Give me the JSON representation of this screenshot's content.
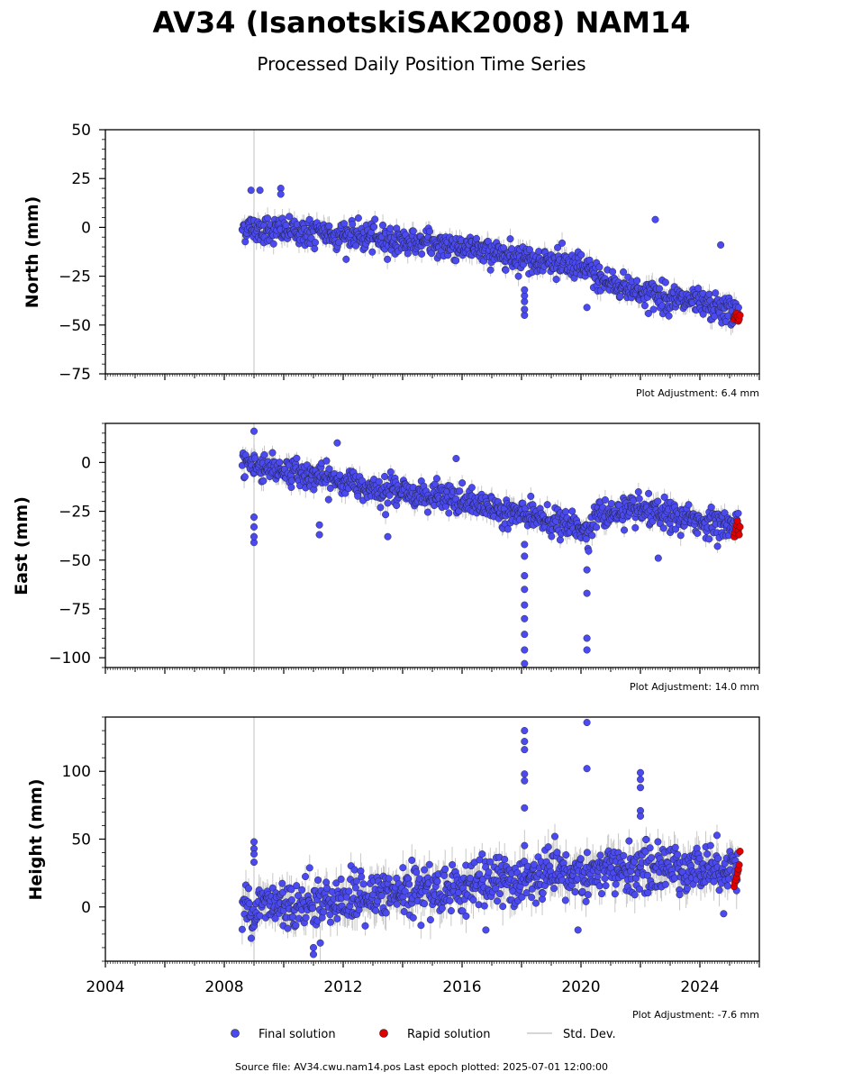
{
  "title": "AV34 (IsanotskiSAK2008) NAM14",
  "subtitle": "Processed Daily Position Time Series",
  "source_note": "Source file: AV34.cwu.nam14.pos  Last epoch plotted: 2025-07-01 12:00:00",
  "legend": {
    "final": "Final solution",
    "rapid": "Rapid solution",
    "std": "Std. Dev."
  },
  "colors": {
    "final": "#4a4af0",
    "rapid": "#e00000",
    "std": "#c8c8c8",
    "edge": "#1a1a1a"
  },
  "chart_data": [
    {
      "type": "scatter",
      "ylabel": "North (mm)",
      "adjustment": "Plot Adjustment: 6.4 mm",
      "xlim": [
        2004,
        2026
      ],
      "ylim": [
        -75,
        50
      ],
      "yticks": [
        -75,
        -50,
        -25,
        0,
        25,
        50
      ],
      "ytick_labels": [
        "−75",
        "−50",
        "−25",
        "0",
        "25",
        "50"
      ],
      "event_line_x": 2009.0,
      "final_trend": [
        [
          2008.6,
          0
        ],
        [
          2012,
          -4
        ],
        [
          2016,
          -10
        ],
        [
          2019,
          -18
        ],
        [
          2020.3,
          -22
        ],
        [
          2020.7,
          -27
        ],
        [
          2022,
          -33
        ],
        [
          2025.3,
          -44
        ]
      ],
      "final_scatter_sd": 3.5,
      "rapid_period": [
        2025.15,
        2025.35
      ],
      "rapid_values": [
        -47,
        -46,
        -45,
        -44,
        -46,
        -48,
        -47,
        -45
      ],
      "outliers": [
        [
          2018.1,
          -45
        ],
        [
          2018.1,
          -42
        ],
        [
          2018.1,
          -38
        ],
        [
          2018.1,
          -35
        ],
        [
          2018.1,
          -32
        ],
        [
          2009.9,
          20
        ],
        [
          2009.9,
          17
        ],
        [
          2020.2,
          -41
        ],
        [
          2022.5,
          4
        ],
        [
          2024.7,
          -9
        ],
        [
          2008.9,
          19
        ],
        [
          2009.2,
          19
        ]
      ]
    },
    {
      "type": "scatter",
      "ylabel": "East (mm)",
      "adjustment": "Plot Adjustment: 14.0 mm",
      "xlim": [
        2004,
        2026
      ],
      "ylim": [
        -105,
        20
      ],
      "yticks": [
        -100,
        -75,
        -50,
        -25,
        0
      ],
      "ytick_labels": [
        "−100",
        "−75",
        "−50",
        "−25",
        "0"
      ],
      "event_line_x": 2009.0,
      "final_trend": [
        [
          2008.6,
          0
        ],
        [
          2012,
          -10
        ],
        [
          2016,
          -20
        ],
        [
          2019,
          -30
        ],
        [
          2020.3,
          -35
        ],
        [
          2020.5,
          -27
        ],
        [
          2022,
          -25
        ],
        [
          2025.3,
          -33
        ]
      ],
      "final_scatter_sd": 3.5,
      "rapid_period": [
        2025.15,
        2025.35
      ],
      "rapid_values": [
        -38,
        -36,
        -34,
        -32,
        -30,
        -35,
        -37,
        -33
      ],
      "outliers": [
        [
          2018.1,
          -103
        ],
        [
          2018.1,
          -96
        ],
        [
          2018.1,
          -88
        ],
        [
          2018.1,
          -80
        ],
        [
          2018.1,
          -73
        ],
        [
          2018.1,
          -65
        ],
        [
          2018.1,
          -58
        ],
        [
          2018.1,
          -48
        ],
        [
          2018.1,
          -42
        ],
        [
          2020.2,
          -96
        ],
        [
          2020.2,
          -90
        ],
        [
          2020.2,
          -67
        ],
        [
          2020.2,
          -55
        ],
        [
          2009.0,
          -41
        ],
        [
          2009.0,
          -38
        ],
        [
          2009.0,
          -33
        ],
        [
          2009.0,
          -28
        ],
        [
          2009.0,
          16
        ],
        [
          2011.2,
          -37
        ],
        [
          2011.2,
          -32
        ],
        [
          2013.5,
          -38
        ],
        [
          2015.8,
          2
        ],
        [
          2011.8,
          10
        ],
        [
          2022.6,
          -49
        ]
      ]
    },
    {
      "type": "scatter",
      "ylabel": "Height (mm)",
      "adjustment": "Plot Adjustment: -7.6 mm",
      "xlim": [
        2004,
        2026
      ],
      "ylim": [
        -40,
        140
      ],
      "yticks": [
        0,
        50,
        100
      ],
      "ytick_labels": [
        "0",
        "50",
        "100"
      ],
      "xticks": [
        2004,
        2008,
        2012,
        2016,
        2020,
        2024
      ],
      "xtick_labels": [
        "2004",
        "2008",
        "2012",
        "2016",
        "2020",
        "2024"
      ],
      "event_line_x": 2009.0,
      "final_trend": [
        [
          2008.6,
          0
        ],
        [
          2012,
          5
        ],
        [
          2016,
          15
        ],
        [
          2019,
          22
        ],
        [
          2022,
          28
        ],
        [
          2025.3,
          30
        ]
      ],
      "final_scatter_sd": 9,
      "rapid_period": [
        2025.15,
        2025.35
      ],
      "rapid_values": [
        15,
        18,
        20,
        22,
        25,
        28,
        31,
        41
      ],
      "outliers": [
        [
          2018.1,
          130
        ],
        [
          2018.1,
          122
        ],
        [
          2018.1,
          116
        ],
        [
          2018.1,
          98
        ],
        [
          2018.1,
          93
        ],
        [
          2018.1,
          73
        ],
        [
          2020.2,
          136
        ],
        [
          2020.2,
          102
        ],
        [
          2022.0,
          99
        ],
        [
          2022.0,
          94
        ],
        [
          2022.0,
          88
        ],
        [
          2022.0,
          71
        ],
        [
          2022.0,
          67
        ],
        [
          2009.0,
          48
        ],
        [
          2009.0,
          43
        ],
        [
          2009.0,
          39
        ],
        [
          2009.0,
          33
        ],
        [
          2011.0,
          -35
        ],
        [
          2011.0,
          -30
        ],
        [
          2019.9,
          -17
        ],
        [
          2016.8,
          -17
        ],
        [
          2024.8,
          -5
        ]
      ]
    }
  ]
}
